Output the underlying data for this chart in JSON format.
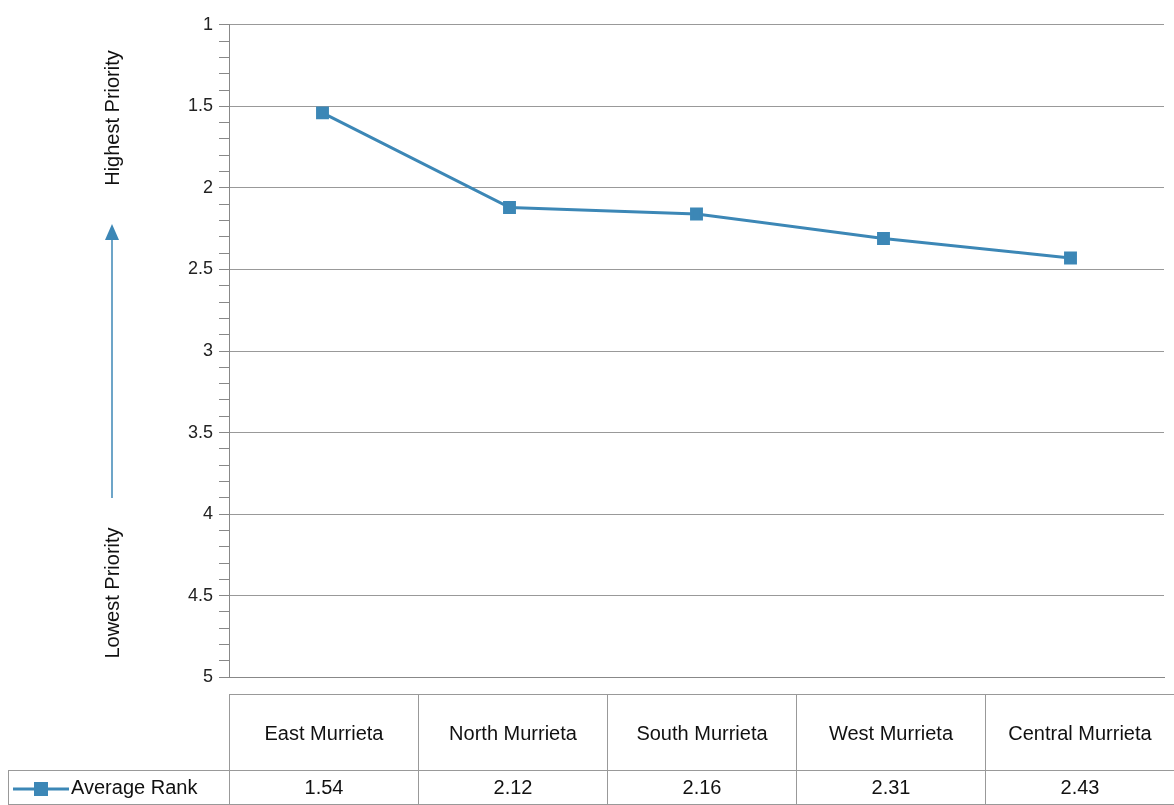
{
  "chart_data": {
    "type": "line",
    "ylabel": "Lowest Priority",
    "annotations": [
      "Highest Priority"
    ],
    "categories": [
      "East Murrieta",
      "North Murrieta",
      "South Murrieta",
      "West Murrieta",
      "Central Murrieta"
    ],
    "series": [
      {
        "name": "Average Rank",
        "color": "#3c87b6",
        "values": [
          1.54,
          2.12,
          2.16,
          2.31,
          2.43
        ]
      }
    ],
    "ylim": [
      5,
      1
    ],
    "yticks": [
      1,
      {
        "value": 1.1,
        "label": null
      },
      {
        "value": 1.2,
        "label": null
      },
      {
        "value": 1.3,
        "label": null
      },
      {
        "value": 1.4,
        "label": null
      },
      1.5,
      {
        "value": 1.6,
        "label": null
      },
      {
        "value": 1.7,
        "label": null
      },
      {
        "value": 1.8,
        "label": null
      },
      {
        "value": 1.9,
        "label": null
      },
      2,
      {
        "value": 2.1,
        "label": null
      },
      {
        "value": 2.2,
        "label": null
      },
      {
        "value": 2.3,
        "label": null
      },
      {
        "value": 2.4,
        "label": null
      },
      2.5,
      {
        "value": 2.6,
        "label": null
      },
      {
        "value": 2.7,
        "label": null
      },
      {
        "value": 2.8,
        "label": null
      },
      {
        "value": 2.9,
        "label": null
      },
      3,
      {
        "value": 3.1,
        "label": null
      },
      {
        "value": 3.2,
        "label": null
      },
      {
        "value": 3.3,
        "label": null
      },
      {
        "value": 3.4,
        "label": null
      },
      3.5,
      {
        "value": 3.6,
        "label": null
      },
      {
        "value": 3.7,
        "label": null
      },
      {
        "value": 3.8,
        "label": null
      },
      {
        "value": 3.9,
        "label": null
      },
      4,
      {
        "value": 4.1,
        "label": null
      },
      {
        "value": 4.2,
        "label": null
      },
      {
        "value": 4.3,
        "label": null
      },
      {
        "value": 4.4,
        "label": null
      },
      4.5,
      {
        "value": 4.6,
        "label": null
      },
      {
        "value": 4.7,
        "label": null
      },
      {
        "value": 4.8,
        "label": null
      },
      {
        "value": 4.9,
        "label": null
      },
      5
    ],
    "grid": "y",
    "marker": "square",
    "line_style": "solid",
    "legend": "bottom left",
    "data_labels": true
  }
}
